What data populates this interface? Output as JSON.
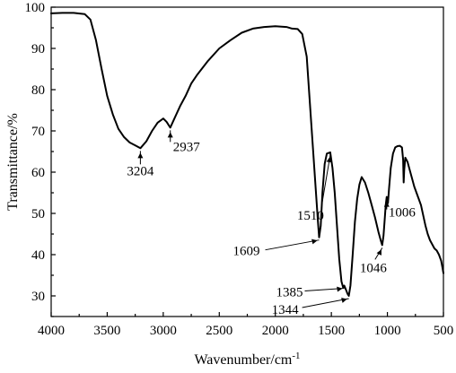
{
  "chart_data": {
    "type": "line",
    "xlabel": "Wavenumber/cm",
    "xlabel_superscript": "-1",
    "ylabel": "Transmittance/%",
    "xlim": [
      4000,
      500
    ],
    "ylim": [
      25,
      100
    ],
    "x_reversed": true,
    "grid": false,
    "x_ticks": [
      4000,
      3500,
      3000,
      2500,
      2000,
      1500,
      1000,
      500
    ],
    "y_ticks": [
      30,
      40,
      50,
      60,
      70,
      80,
      90,
      100
    ],
    "series": [
      {
        "x": [
          4000,
          3900,
          3800,
          3700,
          3650,
          3600,
          3550,
          3500,
          3450,
          3400,
          3350,
          3300,
          3250,
          3204,
          3150,
          3100,
          3050,
          3000,
          2970,
          2937,
          2900,
          2850,
          2800,
          2750,
          2700,
          2600,
          2500,
          2400,
          2300,
          2200,
          2100,
          2000,
          1900,
          1850,
          1800,
          1760,
          1720,
          1700,
          1680,
          1660,
          1640,
          1620,
          1609,
          1595,
          1580,
          1560,
          1540,
          1510,
          1490,
          1470,
          1450,
          1430,
          1410,
          1395,
          1385,
          1370,
          1355,
          1344,
          1330,
          1310,
          1290,
          1270,
          1250,
          1230,
          1200,
          1170,
          1140,
          1110,
          1080,
          1060,
          1046,
          1035,
          1025,
          1015,
          1006,
          995,
          985,
          970,
          950,
          930,
          910,
          890,
          870,
          860,
          855,
          850,
          840,
          820,
          800,
          780,
          760,
          740,
          720,
          700,
          680,
          660,
          640,
          620,
          600,
          580,
          560,
          540,
          520,
          510,
          500
        ],
        "y": [
          98.5,
          98.6,
          98.6,
          98.3,
          97.0,
          92.0,
          85.0,
          78.5,
          74.0,
          70.5,
          68.5,
          67.2,
          66.5,
          65.8,
          67.5,
          70.0,
          72.0,
          73.0,
          72.2,
          70.8,
          73.0,
          76.0,
          78.5,
          81.5,
          83.5,
          87.0,
          90.0,
          92.0,
          93.8,
          94.8,
          95.2,
          95.4,
          95.2,
          94.8,
          94.7,
          93.5,
          88.0,
          80.0,
          72.0,
          64.0,
          56.0,
          48.0,
          44.2,
          47.0,
          55.0,
          62.0,
          64.5,
          64.8,
          61.0,
          55.0,
          47.0,
          39.0,
          33.5,
          32.0,
          32.5,
          31.5,
          30.5,
          30.0,
          32.5,
          40.0,
          48.0,
          53.5,
          57.0,
          58.8,
          57.5,
          55.0,
          52.0,
          49.0,
          45.5,
          43.5,
          42.3,
          44.5,
          48.0,
          52.0,
          54.0,
          52.5,
          56.0,
          61.0,
          64.5,
          66.0,
          66.3,
          66.4,
          66.0,
          63.0,
          57.5,
          60.5,
          63.5,
          62.5,
          60.5,
          58.5,
          56.5,
          55.0,
          53.5,
          52.0,
          49.5,
          47.0,
          45.0,
          43.5,
          42.5,
          41.5,
          41.0,
          40.0,
          38.5,
          37.0,
          35.5
        ]
      }
    ],
    "annotations": [
      {
        "label": "3204",
        "x": 3204,
        "y": 65.8
      },
      {
        "label": "2937",
        "x": 2937,
        "y": 70.8
      },
      {
        "label": "1609",
        "x": 1609,
        "y": 44.2
      },
      {
        "label": "1510",
        "x": 1510,
        "y": 64.8
      },
      {
        "label": "1385",
        "x": 1385,
        "y": 32.5
      },
      {
        "label": "1344",
        "x": 1344,
        "y": 30.0
      },
      {
        "label": "1046",
        "x": 1046,
        "y": 42.3
      },
      {
        "label": "1006",
        "x": 1006,
        "y": 54.0
      }
    ]
  }
}
